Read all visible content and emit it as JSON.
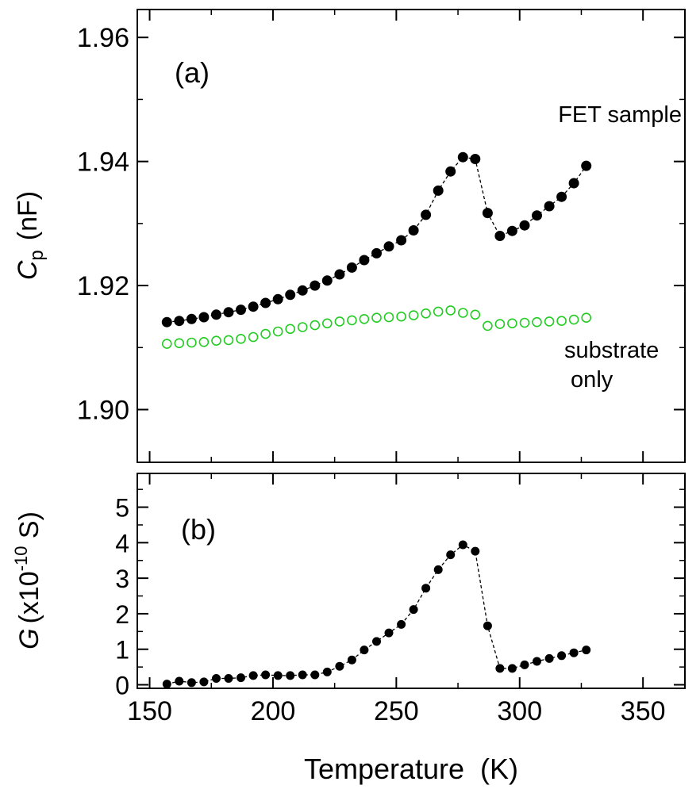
{
  "chart_data": [
    {
      "id": "a",
      "type": "scatter",
      "panel_label": "(a)",
      "ylabel_symbol": "C",
      "ylabel_subscript": "p",
      "ylabel_unit": "(nF)",
      "xlim": [
        145,
        367
      ],
      "ylim": [
        1.8915,
        1.9645
      ],
      "yticks": [
        1.9,
        1.92,
        1.94,
        1.96
      ],
      "ytick_labels": [
        "1.90",
        "1.92",
        "1.94",
        "1.96"
      ],
      "series": [
        {
          "name": "FET sample",
          "marker": "filled-circle",
          "color": "#000000",
          "connected": true,
          "x": [
            157,
            162,
            167,
            172,
            177,
            182,
            187,
            192,
            197,
            202,
            207,
            212,
            217,
            222,
            227,
            232,
            237,
            242,
            247,
            252,
            257,
            262,
            267,
            272,
            277,
            282,
            287,
            292,
            297,
            302,
            307,
            312,
            317,
            322,
            327
          ],
          "y": [
            1.9141,
            1.9143,
            1.9146,
            1.9149,
            1.9153,
            1.9157,
            1.9161,
            1.9166,
            1.9172,
            1.9178,
            1.9185,
            1.9192,
            1.92,
            1.9208,
            1.9218,
            1.9229,
            1.9241,
            1.9252,
            1.9263,
            1.9273,
            1.9289,
            1.9314,
            1.9353,
            1.9384,
            1.9407,
            1.9404,
            1.9317,
            1.928,
            1.9288,
            1.9297,
            1.9313,
            1.9328,
            1.9343,
            1.9365,
            1.9393
          ]
        },
        {
          "name": "substrate only",
          "marker": "open-circle",
          "color": "#22cc22",
          "connected": false,
          "x": [
            157,
            162,
            167,
            172,
            177,
            182,
            187,
            192,
            197,
            202,
            207,
            212,
            217,
            222,
            227,
            232,
            237,
            242,
            247,
            252,
            257,
            262,
            267,
            272,
            277,
            282,
            287,
            292,
            297,
            302,
            307,
            312,
            317,
            322,
            327
          ],
          "y": [
            1.9106,
            1.9107,
            1.9108,
            1.9109,
            1.9111,
            1.9112,
            1.9114,
            1.9117,
            1.9122,
            1.9126,
            1.913,
            1.9133,
            1.9136,
            1.9139,
            1.9142,
            1.9144,
            1.9146,
            1.9148,
            1.9149,
            1.915,
            1.9152,
            1.9155,
            1.9158,
            1.916,
            1.9156,
            1.9153,
            1.9135,
            1.9138,
            1.9139,
            1.914,
            1.9141,
            1.9142,
            1.9143,
            1.9145,
            1.9148
          ]
        }
      ],
      "annotations": [
        {
          "text": "FET sample",
          "lines": [
            "FET sample"
          ]
        },
        {
          "text": "substrate only",
          "lines": [
            "substrate",
            " only"
          ]
        }
      ]
    },
    {
      "id": "b",
      "type": "scatter",
      "panel_label": "(b)",
      "ylabel_symbol": "G",
      "ylabel_unit_prefix": "(x10",
      "ylabel_exponent": "-10",
      "ylabel_unit_suffix": " S)",
      "xlabel": "Temperature  (K)",
      "xlim": [
        145,
        367
      ],
      "ylim": [
        -0.1,
        5.95
      ],
      "yticks": [
        0,
        1,
        2,
        3,
        4,
        5
      ],
      "ytick_labels": [
        "0",
        "1",
        "2",
        "3",
        "4",
        "5"
      ],
      "xticks": [
        150,
        200,
        250,
        300,
        350
      ],
      "xtick_labels": [
        "150",
        "200",
        "250",
        "300",
        "350"
      ],
      "series": [
        {
          "name": "G",
          "marker": "filled-circle",
          "color": "#000000",
          "connected": true,
          "x": [
            157,
            162,
            167,
            172,
            177,
            182,
            187,
            192,
            197,
            202,
            207,
            212,
            217,
            222,
            227,
            232,
            237,
            242,
            247,
            252,
            257,
            262,
            267,
            272,
            277,
            282,
            287,
            292,
            297,
            302,
            307,
            312,
            317,
            322,
            327
          ],
          "y": [
            0.02,
            0.1,
            0.06,
            0.08,
            0.18,
            0.18,
            0.2,
            0.26,
            0.28,
            0.26,
            0.26,
            0.28,
            0.28,
            0.36,
            0.52,
            0.7,
            0.98,
            1.22,
            1.46,
            1.7,
            2.12,
            2.72,
            3.24,
            3.66,
            3.94,
            3.76,
            1.66,
            0.46,
            0.46,
            0.56,
            0.66,
            0.74,
            0.82,
            0.9,
            0.98
          ]
        }
      ]
    }
  ]
}
